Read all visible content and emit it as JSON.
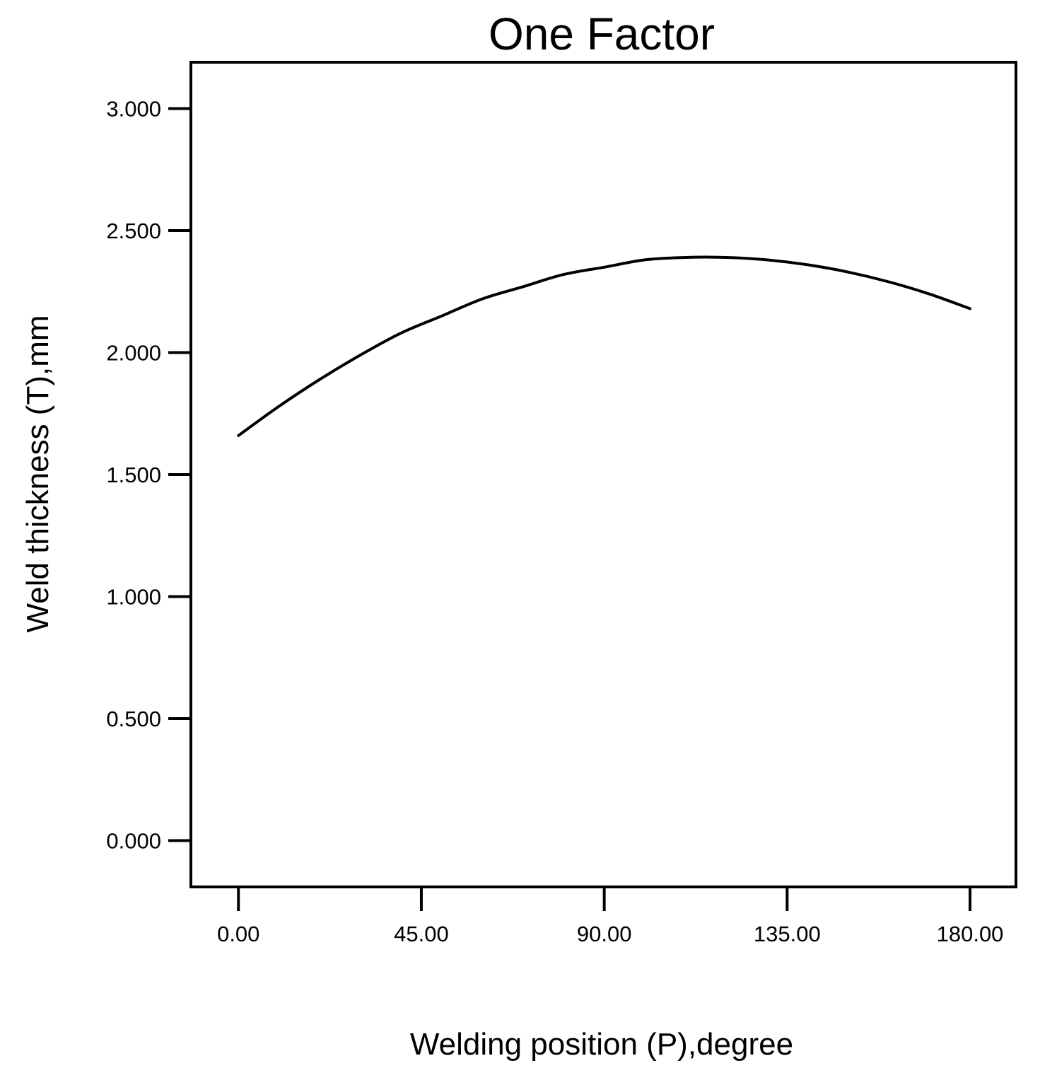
{
  "chart_data": {
    "type": "line",
    "title": "One Factor",
    "xlabel": "Welding position (P),degree",
    "ylabel": "Weld thickness (T),mm",
    "xlim": [
      -11.7,
      191.3
    ],
    "ylim": [
      -0.19,
      3.19
    ],
    "x_ticks": [
      0,
      45,
      90,
      135,
      180
    ],
    "x_tick_labels": [
      "0.00",
      "45.00",
      "90.00",
      "135.00",
      "180.00"
    ],
    "y_ticks": [
      0,
      0.5,
      1.0,
      1.5,
      2.0,
      2.5,
      3.0
    ],
    "y_tick_labels": [
      "0.000",
      "0.500",
      "1.000",
      "1.500",
      "2.000",
      "2.500",
      "3.000"
    ],
    "grid": false,
    "legend": "none",
    "series": [
      {
        "x": [
          0,
          10,
          20,
          30,
          40,
          50,
          60,
          70,
          80,
          90,
          100,
          110,
          120,
          130,
          140,
          150,
          160,
          170,
          180
        ],
        "y": [
          1.66,
          1.78,
          1.89,
          1.99,
          2.08,
          2.15,
          2.22,
          2.27,
          2.32,
          2.35,
          2.38,
          2.39,
          2.39,
          2.38,
          2.36,
          2.33,
          2.29,
          2.24,
          2.18
        ]
      }
    ],
    "colors": {
      "line": "#000000",
      "axes": "#000000",
      "background": "#ffffff"
    }
  }
}
